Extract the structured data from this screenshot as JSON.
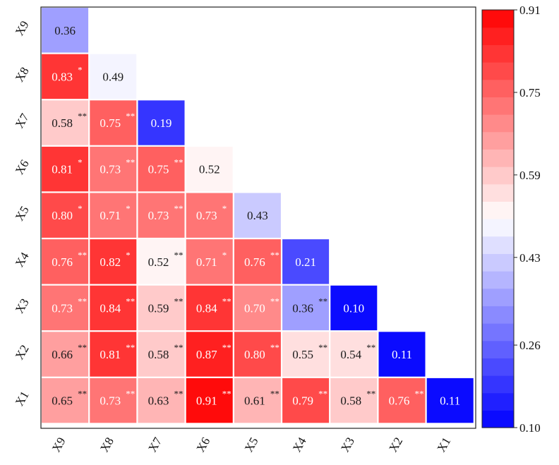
{
  "chart_data": {
    "type": "heatmap",
    "title": "",
    "layout": "lower-triangular",
    "x_labels": [
      "X9",
      "X8",
      "X7",
      "X6",
      "X5",
      "X4",
      "X3",
      "X2",
      "X1"
    ],
    "y_labels": [
      "X9",
      "X8",
      "X7",
      "X6",
      "X5",
      "X4",
      "X3",
      "X2",
      "X1"
    ],
    "cells": [
      [
        {
          "v": 0.36,
          "text": "0.36",
          "sig": ""
        }
      ],
      [
        {
          "v": 0.83,
          "text": "0.83",
          "sig": "*"
        },
        {
          "v": 0.49,
          "text": "0.49",
          "sig": ""
        }
      ],
      [
        {
          "v": 0.58,
          "text": "0.58",
          "sig": "**"
        },
        {
          "v": 0.75,
          "text": "0.75",
          "sig": "**"
        },
        {
          "v": 0.19,
          "text": "0.19",
          "sig": ""
        }
      ],
      [
        {
          "v": 0.81,
          "text": "0.81",
          "sig": "*"
        },
        {
          "v": 0.73,
          "text": "0.73",
          "sig": "**"
        },
        {
          "v": 0.75,
          "text": "0.75",
          "sig": "**"
        },
        {
          "v": 0.52,
          "text": "0.52",
          "sig": ""
        }
      ],
      [
        {
          "v": 0.8,
          "text": "0.80",
          "sig": "*"
        },
        {
          "v": 0.71,
          "text": "0.71",
          "sig": "*"
        },
        {
          "v": 0.73,
          "text": "0.73",
          "sig": "**"
        },
        {
          "v": 0.73,
          "text": "0.73",
          "sig": "*"
        },
        {
          "v": 0.43,
          "text": "0.43",
          "sig": ""
        }
      ],
      [
        {
          "v": 0.76,
          "text": "0.76",
          "sig": "**"
        },
        {
          "v": 0.82,
          "text": "0.82",
          "sig": "*"
        },
        {
          "v": 0.52,
          "text": "0.52",
          "sig": "**"
        },
        {
          "v": 0.71,
          "text": "0.71",
          "sig": "*"
        },
        {
          "v": 0.76,
          "text": "0.76",
          "sig": "**"
        },
        {
          "v": 0.21,
          "text": "0.21",
          "sig": ""
        }
      ],
      [
        {
          "v": 0.73,
          "text": "0.73",
          "sig": "**"
        },
        {
          "v": 0.84,
          "text": "0.84",
          "sig": "**"
        },
        {
          "v": 0.59,
          "text": "0.59",
          "sig": "**"
        },
        {
          "v": 0.84,
          "text": "0.84",
          "sig": "**"
        },
        {
          "v": 0.7,
          "text": "0.70",
          "sig": "**"
        },
        {
          "v": 0.36,
          "text": "0.36",
          "sig": "**"
        },
        {
          "v": 0.1,
          "text": "0.10",
          "sig": ""
        }
      ],
      [
        {
          "v": 0.66,
          "text": "0.66",
          "sig": "**"
        },
        {
          "v": 0.81,
          "text": "0.81",
          "sig": "**"
        },
        {
          "v": 0.58,
          "text": "0.58",
          "sig": "**"
        },
        {
          "v": 0.87,
          "text": "0.87",
          "sig": "**"
        },
        {
          "v": 0.8,
          "text": "0.80",
          "sig": "**"
        },
        {
          "v": 0.55,
          "text": "0.55",
          "sig": "**"
        },
        {
          "v": 0.54,
          "text": "0.54",
          "sig": "**"
        },
        {
          "v": 0.11,
          "text": "0.11",
          "sig": ""
        }
      ],
      [
        {
          "v": 0.65,
          "text": "0.65",
          "sig": "**"
        },
        {
          "v": 0.73,
          "text": "0.73",
          "sig": "**"
        },
        {
          "v": 0.63,
          "text": "0.63",
          "sig": "**"
        },
        {
          "v": 0.91,
          "text": "0.91",
          "sig": "**"
        },
        {
          "v": 0.61,
          "text": "0.61",
          "sig": "**"
        },
        {
          "v": 0.79,
          "text": "0.79",
          "sig": "**"
        },
        {
          "v": 0.58,
          "text": "0.58",
          "sig": "**"
        },
        {
          "v": 0.76,
          "text": "0.76",
          "sig": "**"
        },
        {
          "v": 0.11,
          "text": "0.11",
          "sig": ""
        }
      ]
    ],
    "colorbar": {
      "min": 0.1,
      "max": 0.91,
      "ticks": [
        "0.91",
        "0.75",
        "0.59",
        "0.43",
        "0.26",
        "0.10"
      ],
      "colormap": "bwr",
      "low_color": "#0000ff",
      "mid_color": "#ffffff",
      "high_color": "#ff0000",
      "levels": 24
    }
  }
}
